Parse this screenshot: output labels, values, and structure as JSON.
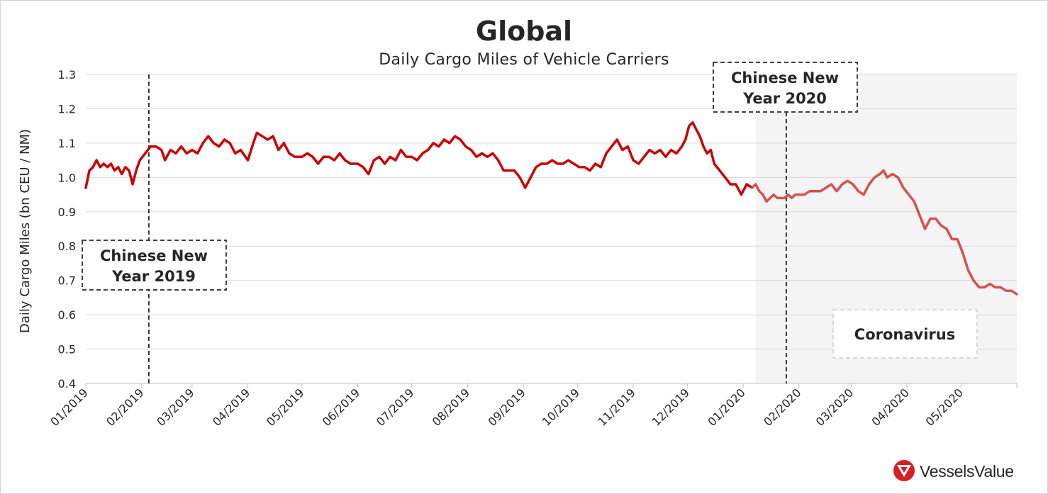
{
  "colors": {
    "line_2019": "#cc0000",
    "line_2020": "#d94f4f",
    "shade": "#f4f4f4",
    "grid": "#d9d9d9",
    "text": "#262626",
    "logo_red": "#d62027"
  },
  "logo": {
    "text": "VesselsValue",
    "icon": "vesselsvalue-logo-icon"
  },
  "chart_data": {
    "type": "line",
    "title": "Global",
    "subtitle": "Daily Cargo Miles of Vehicle Carriers",
    "ylabel": "Daily Cargo Miles (bn CEU / NM)",
    "xlabel": "",
    "ylim": [
      0.4,
      1.3
    ],
    "xlim": [
      "2019-01-01",
      "2020-06-01"
    ],
    "yticks": [
      "0.4",
      "0.5",
      "0.6",
      "0.7",
      "0.8",
      "0.9",
      "1.0",
      "1.1",
      "1.2",
      "1.3"
    ],
    "xticks": [
      {
        "date": "2019-01-01",
        "label": "01/2019"
      },
      {
        "date": "2019-02-01",
        "label": "02/2019"
      },
      {
        "date": "2019-03-01",
        "label": "03/2019"
      },
      {
        "date": "2019-04-01",
        "label": "04/2019"
      },
      {
        "date": "2019-05-01",
        "label": "05/2019"
      },
      {
        "date": "2019-06-01",
        "label": "06/2019"
      },
      {
        "date": "2019-07-01",
        "label": "07/2019"
      },
      {
        "date": "2019-08-01",
        "label": "08/2019"
      },
      {
        "date": "2019-09-01",
        "label": "09/2019"
      },
      {
        "date": "2019-10-01",
        "label": "10/2019"
      },
      {
        "date": "2019-11-01",
        "label": "11/2019"
      },
      {
        "date": "2019-12-01",
        "label": "12/2019"
      },
      {
        "date": "2020-01-01",
        "label": "01/2020"
      },
      {
        "date": "2020-02-01",
        "label": "02/2020"
      },
      {
        "date": "2020-03-01",
        "label": "03/2020"
      },
      {
        "date": "2020-04-01",
        "label": "04/2020"
      },
      {
        "date": "2020-05-01",
        "label": "05/2020"
      }
    ],
    "grid": true,
    "legend": "none",
    "series": [
      {
        "points": [
          [
            "2019-01-01",
            0.97
          ],
          [
            "2019-01-03",
            1.02
          ],
          [
            "2019-01-05",
            1.03
          ],
          [
            "2019-01-07",
            1.05
          ],
          [
            "2019-01-09",
            1.03
          ],
          [
            "2019-01-11",
            1.04
          ],
          [
            "2019-01-13",
            1.03
          ],
          [
            "2019-01-15",
            1.04
          ],
          [
            "2019-01-17",
            1.02
          ],
          [
            "2019-01-19",
            1.03
          ],
          [
            "2019-01-21",
            1.01
          ],
          [
            "2019-01-23",
            1.03
          ],
          [
            "2019-01-25",
            1.02
          ],
          [
            "2019-01-27",
            0.98
          ],
          [
            "2019-01-29",
            1.02
          ],
          [
            "2019-01-31",
            1.05
          ],
          [
            "2019-02-03",
            1.07
          ],
          [
            "2019-02-06",
            1.09
          ],
          [
            "2019-02-09",
            1.09
          ],
          [
            "2019-02-12",
            1.08
          ],
          [
            "2019-02-14",
            1.05
          ],
          [
            "2019-02-17",
            1.08
          ],
          [
            "2019-02-20",
            1.07
          ],
          [
            "2019-02-23",
            1.09
          ],
          [
            "2019-02-26",
            1.07
          ],
          [
            "2019-03-01",
            1.08
          ],
          [
            "2019-03-04",
            1.07
          ],
          [
            "2019-03-07",
            1.1
          ],
          [
            "2019-03-10",
            1.12
          ],
          [
            "2019-03-13",
            1.1
          ],
          [
            "2019-03-16",
            1.09
          ],
          [
            "2019-03-19",
            1.11
          ],
          [
            "2019-03-22",
            1.1
          ],
          [
            "2019-03-25",
            1.07
          ],
          [
            "2019-03-28",
            1.08
          ],
          [
            "2019-04-01",
            1.05
          ],
          [
            "2019-04-04",
            1.1
          ],
          [
            "2019-04-06",
            1.13
          ],
          [
            "2019-04-09",
            1.12
          ],
          [
            "2019-04-12",
            1.11
          ],
          [
            "2019-04-15",
            1.12
          ],
          [
            "2019-04-18",
            1.08
          ],
          [
            "2019-04-21",
            1.1
          ],
          [
            "2019-04-24",
            1.07
          ],
          [
            "2019-04-27",
            1.06
          ],
          [
            "2019-05-01",
            1.06
          ],
          [
            "2019-05-04",
            1.07
          ],
          [
            "2019-05-07",
            1.06
          ],
          [
            "2019-05-10",
            1.04
          ],
          [
            "2019-05-13",
            1.06
          ],
          [
            "2019-05-16",
            1.06
          ],
          [
            "2019-05-19",
            1.05
          ],
          [
            "2019-05-22",
            1.07
          ],
          [
            "2019-05-25",
            1.05
          ],
          [
            "2019-05-28",
            1.04
          ],
          [
            "2019-06-01",
            1.04
          ],
          [
            "2019-06-04",
            1.03
          ],
          [
            "2019-06-07",
            1.01
          ],
          [
            "2019-06-10",
            1.05
          ],
          [
            "2019-06-13",
            1.06
          ],
          [
            "2019-06-16",
            1.04
          ],
          [
            "2019-06-19",
            1.06
          ],
          [
            "2019-06-22",
            1.05
          ],
          [
            "2019-06-25",
            1.08
          ],
          [
            "2019-06-28",
            1.06
          ],
          [
            "2019-07-01",
            1.06
          ],
          [
            "2019-07-04",
            1.05
          ],
          [
            "2019-07-07",
            1.07
          ],
          [
            "2019-07-10",
            1.08
          ],
          [
            "2019-07-13",
            1.1
          ],
          [
            "2019-07-16",
            1.09
          ],
          [
            "2019-07-19",
            1.11
          ],
          [
            "2019-07-22",
            1.1
          ],
          [
            "2019-07-25",
            1.12
          ],
          [
            "2019-07-28",
            1.11
          ],
          [
            "2019-07-31",
            1.09
          ],
          [
            "2019-08-03",
            1.08
          ],
          [
            "2019-08-06",
            1.06
          ],
          [
            "2019-08-09",
            1.07
          ],
          [
            "2019-08-12",
            1.06
          ],
          [
            "2019-08-15",
            1.07
          ],
          [
            "2019-08-18",
            1.05
          ],
          [
            "2019-08-21",
            1.02
          ],
          [
            "2019-08-24",
            1.02
          ],
          [
            "2019-08-27",
            1.02
          ],
          [
            "2019-08-30",
            1.0
          ],
          [
            "2019-09-02",
            0.97
          ],
          [
            "2019-09-05",
            1.0
          ],
          [
            "2019-09-08",
            1.03
          ],
          [
            "2019-09-11",
            1.04
          ],
          [
            "2019-09-14",
            1.04
          ],
          [
            "2019-09-17",
            1.05
          ],
          [
            "2019-09-20",
            1.04
          ],
          [
            "2019-09-23",
            1.04
          ],
          [
            "2019-09-26",
            1.05
          ],
          [
            "2019-09-29",
            1.04
          ],
          [
            "2019-10-02",
            1.03
          ],
          [
            "2019-10-05",
            1.03
          ],
          [
            "2019-10-08",
            1.02
          ],
          [
            "2019-10-11",
            1.04
          ],
          [
            "2019-10-14",
            1.03
          ],
          [
            "2019-10-17",
            1.07
          ],
          [
            "2019-10-20",
            1.09
          ],
          [
            "2019-10-23",
            1.11
          ],
          [
            "2019-10-26",
            1.08
          ],
          [
            "2019-10-29",
            1.09
          ],
          [
            "2019-11-01",
            1.05
          ],
          [
            "2019-11-04",
            1.04
          ],
          [
            "2019-11-07",
            1.06
          ],
          [
            "2019-11-10",
            1.08
          ],
          [
            "2019-11-13",
            1.07
          ],
          [
            "2019-11-16",
            1.08
          ],
          [
            "2019-11-19",
            1.06
          ],
          [
            "2019-11-22",
            1.08
          ],
          [
            "2019-11-25",
            1.07
          ],
          [
            "2019-11-28",
            1.09
          ],
          [
            "2019-11-30",
            1.11
          ],
          [
            "2019-12-02",
            1.15
          ],
          [
            "2019-12-04",
            1.16
          ],
          [
            "2019-12-06",
            1.14
          ],
          [
            "2019-12-08",
            1.12
          ],
          [
            "2019-12-10",
            1.09
          ],
          [
            "2019-12-12",
            1.07
          ],
          [
            "2019-12-14",
            1.08
          ],
          [
            "2019-12-16",
            1.04
          ],
          [
            "2019-12-19",
            1.02
          ],
          [
            "2019-12-22",
            1.0
          ],
          [
            "2019-12-25",
            0.98
          ],
          [
            "2019-12-28",
            0.98
          ],
          [
            "2019-12-31",
            0.95
          ],
          [
            "2020-01-03",
            0.98
          ],
          [
            "2020-01-06",
            0.97
          ]
        ]
      },
      {
        "points": [
          [
            "2020-01-06",
            0.97
          ],
          [
            "2020-01-08",
            0.98
          ],
          [
            "2020-01-10",
            0.96
          ],
          [
            "2020-01-12",
            0.95
          ],
          [
            "2020-01-14",
            0.93
          ],
          [
            "2020-01-16",
            0.94
          ],
          [
            "2020-01-18",
            0.95
          ],
          [
            "2020-01-20",
            0.94
          ],
          [
            "2020-01-22",
            0.94
          ],
          [
            "2020-01-24",
            0.94
          ],
          [
            "2020-01-26",
            0.95
          ],
          [
            "2020-01-28",
            0.94
          ],
          [
            "2020-01-30",
            0.95
          ],
          [
            "2020-02-01",
            0.95
          ],
          [
            "2020-02-04",
            0.95
          ],
          [
            "2020-02-07",
            0.96
          ],
          [
            "2020-02-10",
            0.96
          ],
          [
            "2020-02-13",
            0.96
          ],
          [
            "2020-02-16",
            0.97
          ],
          [
            "2020-02-19",
            0.98
          ],
          [
            "2020-02-22",
            0.96
          ],
          [
            "2020-02-25",
            0.98
          ],
          [
            "2020-02-28",
            0.99
          ],
          [
            "2020-03-02",
            0.98
          ],
          [
            "2020-03-05",
            0.96
          ],
          [
            "2020-03-08",
            0.95
          ],
          [
            "2020-03-11",
            0.98
          ],
          [
            "2020-03-14",
            1.0
          ],
          [
            "2020-03-17",
            1.01
          ],
          [
            "2020-03-19",
            1.02
          ],
          [
            "2020-03-21",
            1.0
          ],
          [
            "2020-03-24",
            1.01
          ],
          [
            "2020-03-27",
            1.0
          ],
          [
            "2020-03-30",
            0.97
          ],
          [
            "2020-04-02",
            0.95
          ],
          [
            "2020-04-05",
            0.93
          ],
          [
            "2020-04-08",
            0.89
          ],
          [
            "2020-04-11",
            0.85
          ],
          [
            "2020-04-14",
            0.88
          ],
          [
            "2020-04-17",
            0.88
          ],
          [
            "2020-04-20",
            0.86
          ],
          [
            "2020-04-23",
            0.85
          ],
          [
            "2020-04-26",
            0.82
          ],
          [
            "2020-04-29",
            0.82
          ],
          [
            "2020-05-02",
            0.78
          ],
          [
            "2020-05-05",
            0.73
          ],
          [
            "2020-05-08",
            0.7
          ],
          [
            "2020-05-11",
            0.68
          ],
          [
            "2020-05-14",
            0.68
          ],
          [
            "2020-05-17",
            0.69
          ],
          [
            "2020-05-20",
            0.68
          ],
          [
            "2020-05-23",
            0.68
          ],
          [
            "2020-05-26",
            0.67
          ],
          [
            "2020-05-29",
            0.67
          ],
          [
            "2020-06-01",
            0.66
          ]
        ]
      }
    ],
    "annotations": [
      {
        "text_lines": [
          "Chinese New",
          "Year 2019"
        ],
        "date": "2019-02-05",
        "style": "dashed-box"
      },
      {
        "text_lines": [
          "Chinese New",
          "Year 2020"
        ],
        "date": "2020-01-25",
        "style": "dashed-box"
      },
      {
        "text_lines": [
          "Coronavirus"
        ],
        "shaded_from": "2020-01-08",
        "shaded_to": "2020-06-01",
        "style": "shaded-region"
      }
    ]
  }
}
